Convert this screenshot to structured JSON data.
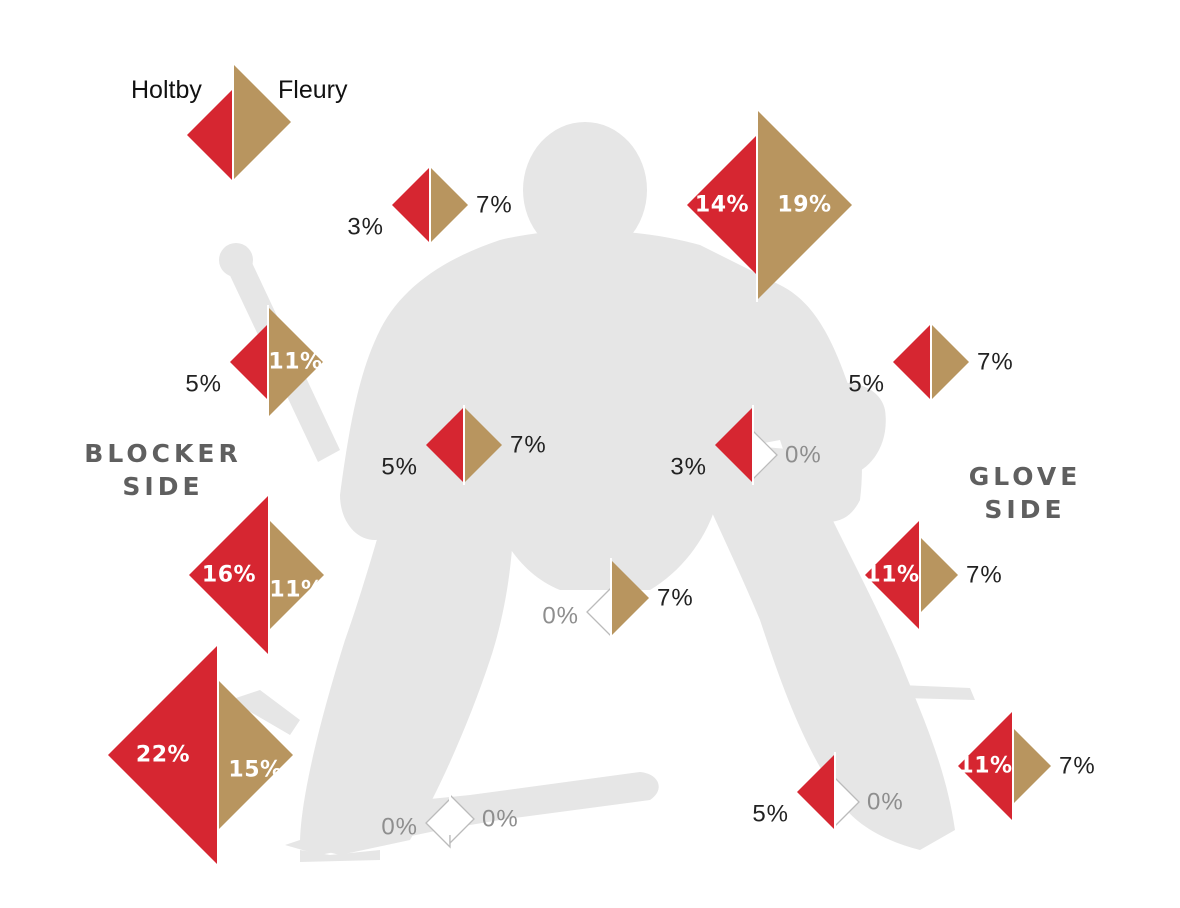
{
  "legend": {
    "left_name": "Holtby",
    "right_name": "Fleury"
  },
  "side_labels": {
    "blocker": [
      "BLOCKER",
      "SIDE"
    ],
    "glove": [
      "GLOVE",
      "SIDE"
    ]
  },
  "colors": {
    "holtby": "#d62631",
    "fleury": "#b8955f",
    "silhouette": "#e6e6e6",
    "zero_outline": "#bbbbbb",
    "label_dark": "#222222",
    "label_zero": "#8e8e8e",
    "label_inside": "#ffffff",
    "side_label": "#5f5f5f"
  },
  "chart_data": {
    "type": "paired-diamond",
    "series": [
      {
        "name": "Holtby",
        "color": "#d62631"
      },
      {
        "name": "Fleury",
        "color": "#b8955f"
      }
    ],
    "zones": [
      {
        "id": "top-left",
        "holtby": 3,
        "fleury": 7,
        "holtby_label": "3%",
        "fleury_label": "7%"
      },
      {
        "id": "top-right",
        "holtby": 14,
        "fleury": 19,
        "holtby_label": "14%",
        "fleury_label": "19%"
      },
      {
        "id": "upper-left",
        "holtby": 5,
        "fleury": 11,
        "holtby_label": "5%",
        "fleury_label": "11%"
      },
      {
        "id": "upper-right",
        "holtby": 5,
        "fleury": 7,
        "holtby_label": "5%",
        "fleury_label": "7%"
      },
      {
        "id": "center-left",
        "holtby": 5,
        "fleury": 7,
        "holtby_label": "5%",
        "fleury_label": "7%"
      },
      {
        "id": "center-right",
        "holtby": 3,
        "fleury": 0,
        "holtby_label": "3%",
        "fleury_label": "0%"
      },
      {
        "id": "mid-left",
        "holtby": 16,
        "fleury": 11,
        "holtby_label": "16%",
        "fleury_label": "11%"
      },
      {
        "id": "mid-right",
        "holtby": 11,
        "fleury": 7,
        "holtby_label": "11%",
        "fleury_label": "7%"
      },
      {
        "id": "five-hole",
        "holtby": 0,
        "fleury": 7,
        "holtby_label": "0%",
        "fleury_label": "7%"
      },
      {
        "id": "bottom-left",
        "holtby": 22,
        "fleury": 15,
        "holtby_label": "22%",
        "fleury_label": "15%"
      },
      {
        "id": "bottom-center",
        "holtby": 0,
        "fleury": 0,
        "holtby_label": "0%",
        "fleury_label": "0%"
      },
      {
        "id": "bottom-right-low",
        "holtby": 5,
        "fleury": 0,
        "holtby_label": "5%",
        "fleury_label": "0%"
      },
      {
        "id": "bottom-right",
        "holtby": 11,
        "fleury": 7,
        "holtby_label": "11%",
        "fleury_label": "7%"
      }
    ]
  }
}
